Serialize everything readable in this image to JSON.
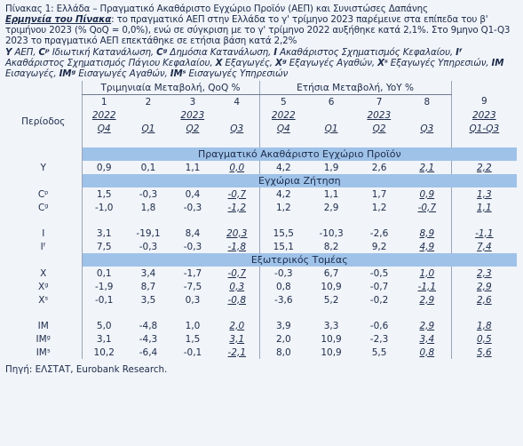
{
  "header": {
    "title": "Πίνακας 1: Ελλάδα – Πραγματικό Ακαθάριστο Εγχώριο Προϊόν (ΑΕΠ) και Συνιστώσες Δαπάνης",
    "note_label": "Ερμηνεία του Πίνακα",
    "note_text": ": το πραγματικό ΑΕΠ στην Ελλάδα το γ' τρίμηνο 2023 παρέμεινε στα επίπεδα του β' τριμήνου 2023 (% QoQ = 0,0%), ενώ σε σύγκριση με το γ' τρίμηνο 2022 αυξήθηκε κατά 2,1%. Στο 9μηνο Q1-Q3 2023 το πραγματικό ΑΕΠ επεκτάθηκε σε ετήσια βάση κατά 2,2%",
    "legend": [
      {
        "symbol": "Y",
        "text": "ΑΕΠ,"
      },
      {
        "symbol": "Cᵖ",
        "text": "Ιδιωτική Κατανάλωση,"
      },
      {
        "symbol": "Cᵍ",
        "text": "Δημόσια Κατανάλωση,"
      },
      {
        "symbol": "I",
        "text": "Ακαθάριστος Σχηματισμός Κεφαλαίου,"
      },
      {
        "symbol": "Iᶠ",
        "text": "Ακαθάριστος Σχηματισμός Πάγιου Κεφαλαίου,"
      },
      {
        "symbol": "X",
        "text": "Εξαγωγές,"
      },
      {
        "symbol": "Xᵍ",
        "text": "Εξαγωγές Αγαθών,"
      },
      {
        "symbol": "Xˢ",
        "text": "Εξαγωγές Υπηρεσιών,"
      },
      {
        "symbol": "IM",
        "text": "Εισαγωγές,"
      },
      {
        "symbol": "IMᵍ",
        "text": "Εισαγωγές Αγαθών,"
      },
      {
        "symbol": "IMˢ",
        "text": "Εισαγωγές Υπηρεσιών"
      }
    ]
  },
  "table": {
    "group_headers": [
      "Τριμηνιαία Μεταβολή, QoQ %",
      "Ετήσια Μεταβολή, YoY %"
    ],
    "period_label": "Περίοδος",
    "column_numbers": [
      "1",
      "2",
      "3",
      "4",
      "5",
      "6",
      "7",
      "8",
      "9"
    ],
    "years": [
      "2022",
      "2023",
      "2022",
      "2023",
      "2023"
    ],
    "quarters": [
      "Q4",
      "Q1",
      "Q2",
      "Q3",
      "Q4",
      "Q1",
      "Q2",
      "Q3",
      "Q1-Q3"
    ],
    "sections": [
      {
        "title": "Πραγματικό Ακαθάριστο Εγχώριο Προϊόν",
        "groups": [
          [
            {
              "label": "Y",
              "values": [
                "0,9",
                "0,1",
                "1,1",
                "0,0",
                "4,2",
                "1,9",
                "2,6",
                "2,1",
                "2,2"
              ]
            }
          ]
        ]
      },
      {
        "title": "Εγχώρια Ζήτηση",
        "groups": [
          [
            {
              "label": "Cᵖ",
              "values": [
                "1,5",
                "-0,3",
                "0,4",
                "-0,7",
                "4,2",
                "1,1",
                "1,7",
                "0,9",
                "1,3"
              ]
            },
            {
              "label": "Cᵍ",
              "values": [
                "-1,0",
                "1,8",
                "-0,3",
                "-1,2",
                "1,2",
                "2,9",
                "1,2",
                "-0,7",
                "1,1"
              ]
            }
          ],
          [
            {
              "label": "I",
              "values": [
                "3,1",
                "-19,1",
                "8,4",
                "20,3",
                "15,5",
                "-10,3",
                "-2,6",
                "8,9",
                "-1,1"
              ]
            },
            {
              "label": "Iᶠ",
              "values": [
                "7,5",
                "-0,3",
                "-0,3",
                "-1,8",
                "15,1",
                "8,2",
                "9,2",
                "4,9",
                "7,4"
              ]
            }
          ]
        ]
      },
      {
        "title": "Εξωτερικός Τομέας",
        "groups": [
          [
            {
              "label": "X",
              "values": [
                "0,1",
                "3,4",
                "-1,7",
                "-0,7",
                "-0,3",
                "6,7",
                "-0,5",
                "1,0",
                "2,3"
              ]
            },
            {
              "label": "Xᵍ",
              "values": [
                "-1,9",
                "8,7",
                "-7,5",
                "0,3",
                "0,8",
                "10,9",
                "-0,7",
                "-1,1",
                "2,9"
              ]
            },
            {
              "label": "Xˢ",
              "values": [
                "-0,1",
                "3,5",
                "0,3",
                "-0,8",
                "-3,6",
                "5,2",
                "-0,2",
                "2,9",
                "2,6"
              ]
            }
          ],
          [
            {
              "label": "IM",
              "values": [
                "5,0",
                "-4,8",
                "1,0",
                "2,0",
                "3,9",
                "3,3",
                "-0,6",
                "2,9",
                "1,8"
              ]
            },
            {
              "label": "IMᵍ",
              "values": [
                "3,1",
                "-4,3",
                "1,5",
                "3,1",
                "2,0",
                "10,9",
                "-2,3",
                "3,4",
                "0,5"
              ]
            },
            {
              "label": "IMˢ",
              "values": [
                "10,2",
                "-6,4",
                "-0,1",
                "-2,1",
                "8,0",
                "10,9",
                "5,5",
                "0,8",
                "5,6"
              ]
            }
          ]
        ]
      }
    ]
  },
  "source": "Πηγή: ΕΛΣΤΑΤ, Eurobank Research."
}
